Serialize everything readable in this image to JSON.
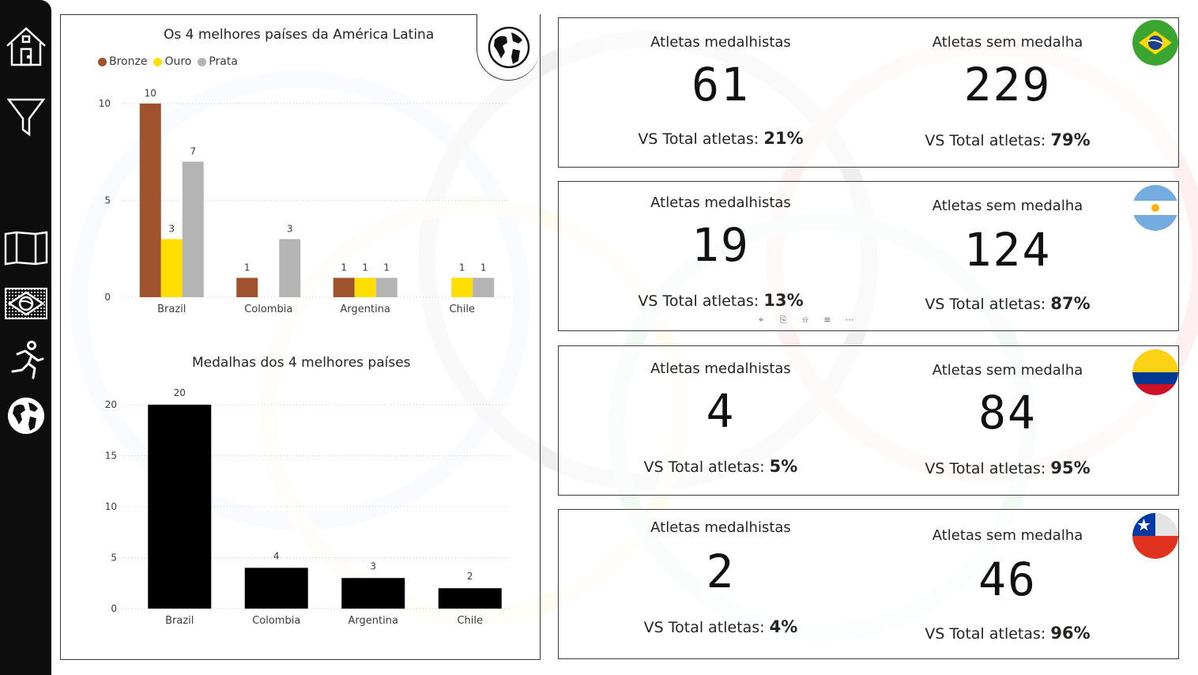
{
  "colors": {
    "bronze": "#a0522d",
    "ouro": "#ffde00",
    "prata": "#b4b4b4",
    "bars": "#000000"
  },
  "sidebar": {
    "items": [
      {
        "name": "home-icon"
      },
      {
        "name": "filter-icon"
      },
      {
        "name": "map-icon"
      },
      {
        "name": "brazil-flag-icon"
      },
      {
        "name": "runner-icon"
      },
      {
        "name": "globe-icon"
      }
    ]
  },
  "chart1": {
    "title": "Os 4 melhores países da América Latina",
    "legend": [
      "Bronze",
      "Ouro",
      "Prata"
    ]
  },
  "chart2": {
    "title": "Medalhas dos 4 melhores países"
  },
  "chart_data": [
    {
      "type": "bar",
      "title": "Os 4 melhores países da América Latina",
      "categories": [
        "Brazil",
        "Colombia",
        "Argentina",
        "Chile"
      ],
      "series": [
        {
          "name": "Bronze",
          "values": [
            10,
            1,
            1,
            null
          ]
        },
        {
          "name": "Ouro",
          "values": [
            3,
            null,
            1,
            1
          ]
        },
        {
          "name": "Prata",
          "values": [
            7,
            3,
            1,
            1
          ]
        }
      ],
      "ylim": [
        0,
        10
      ],
      "yticks": [
        0,
        5,
        10
      ],
      "grid": true,
      "legend": "top-left"
    },
    {
      "type": "bar",
      "title": "Medalhas dos 4 melhores países",
      "categories": [
        "Brazil",
        "Colombia",
        "Argentina",
        "Chile"
      ],
      "values": [
        20,
        4,
        3,
        2
      ],
      "ylim": [
        0,
        20
      ],
      "yticks": [
        0,
        5,
        10,
        15,
        20
      ],
      "grid": true
    }
  ],
  "cards": [
    {
      "country": "Brazil",
      "medal_label": "Atletas medalhistas",
      "medal_value": "61",
      "medal_vs_label": "VS Total atletas:",
      "medal_vs_value": "21%",
      "nomedal_label": "Atletas sem medalha",
      "nomedal_value": "229",
      "nomedal_vs_label": "VS Total atletas:",
      "nomedal_vs_value": "79%"
    },
    {
      "country": "Argentina",
      "medal_label": "Atletas medalhistas",
      "medal_value": "19",
      "medal_vs_label": "VS Total atletas:",
      "medal_vs_value": "13%",
      "nomedal_label": "Atletas sem medalha",
      "nomedal_value": "124",
      "nomedal_vs_label": "VS Total atletas:",
      "nomedal_vs_value": "87%"
    },
    {
      "country": "Colombia",
      "medal_label": "Atletas medalhistas",
      "medal_value": "4",
      "medal_vs_label": "VS Total atletas:",
      "medal_vs_value": "5%",
      "nomedal_label": "Atletas sem medalha",
      "nomedal_value": "84",
      "nomedal_vs_label": "VS Total atletas:",
      "nomedal_vs_value": "95%"
    },
    {
      "country": "Chile",
      "medal_label": "Atletas medalhistas",
      "medal_value": "2",
      "medal_vs_label": "VS Total atletas:",
      "medal_vs_value": "4%",
      "nomedal_label": "Atletas sem medalha",
      "nomedal_value": "46",
      "nomedal_vs_label": "VS Total atletas:",
      "nomedal_vs_value": "96%"
    }
  ],
  "visual_toolbar": [
    "pin-icon",
    "copy-icon",
    "bell-icon",
    "filter-icon",
    "more-options-icon"
  ]
}
